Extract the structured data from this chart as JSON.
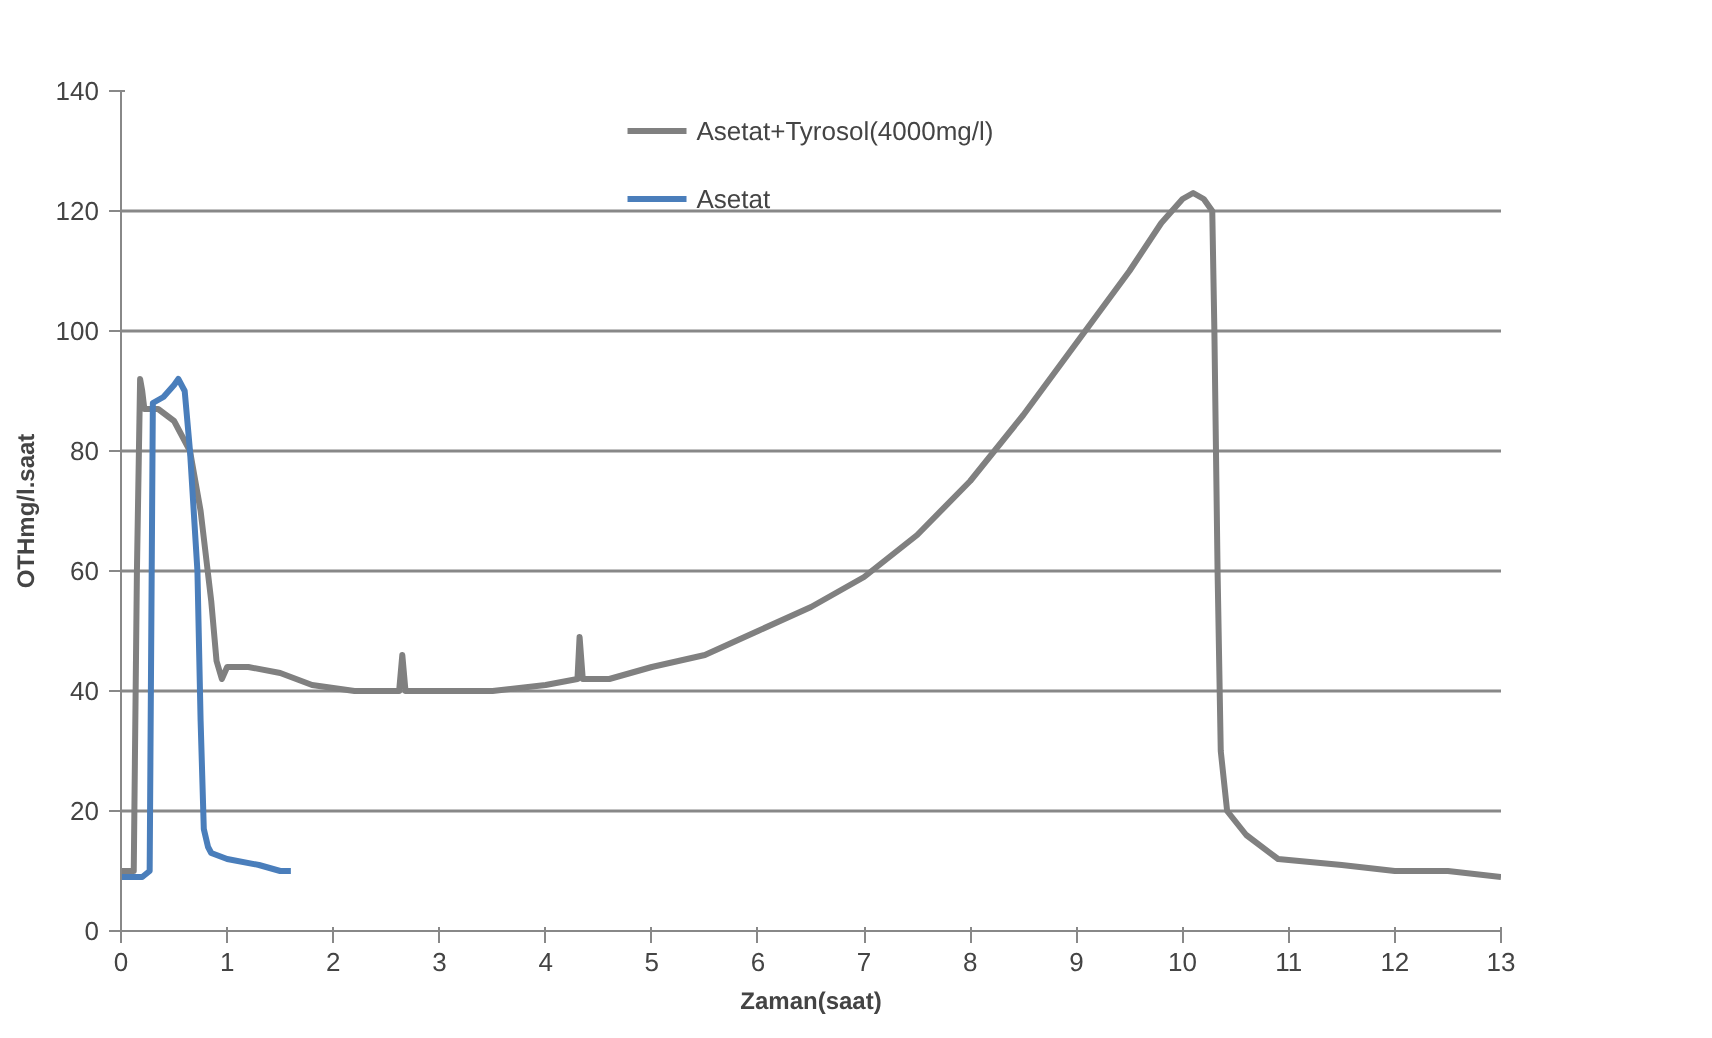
{
  "chart_data": {
    "type": "line",
    "xlabel": "Zaman(saat)",
    "ylabel": "OTHmg/l.saat",
    "xlim": [
      0,
      13
    ],
    "ylim": [
      0,
      140
    ],
    "xticks": [
      0,
      1,
      2,
      3,
      4,
      5,
      6,
      7,
      8,
      9,
      10,
      11,
      12,
      13
    ],
    "yticks": [
      0,
      20,
      40,
      60,
      80,
      100,
      120,
      140
    ],
    "grid": "y",
    "legend": "top",
    "line_style": "solid",
    "marker": "none",
    "series": [
      {
        "name": "Asetat+Tyrosol(4000mg/l)",
        "color": "#808080",
        "x": [
          0,
          0.12,
          0.15,
          0.18,
          0.2,
          0.22,
          0.35,
          0.5,
          0.65,
          0.75,
          0.85,
          0.9,
          0.95,
          1.0,
          1.2,
          1.5,
          1.8,
          2.2,
          2.5,
          2.62,
          2.65,
          2.68,
          3,
          3.5,
          4,
          4.3,
          4.32,
          4.35,
          4.6,
          5,
          5.5,
          6,
          6.5,
          7,
          7.5,
          8,
          8.5,
          9,
          9.5,
          9.8,
          10,
          10.1,
          10.2,
          10.28,
          10.3,
          10.33,
          10.36,
          10.42,
          10.6,
          10.9,
          11.5,
          12,
          12.5,
          13
        ],
        "values": [
          10,
          10,
          60,
          92,
          90,
          87,
          87,
          85,
          80,
          70,
          55,
          45,
          42,
          44,
          44,
          43,
          41,
          40,
          40,
          40,
          46,
          40,
          40,
          40,
          41,
          42,
          49,
          42,
          42,
          44,
          46,
          50,
          54,
          59,
          66,
          75,
          86,
          98,
          110,
          118,
          122,
          123,
          122,
          120,
          100,
          60,
          30,
          20,
          16,
          12,
          11,
          10,
          10,
          9
        ]
      },
      {
        "name": "Asetat",
        "color": "#4a7ebb",
        "x": [
          0,
          0.2,
          0.27,
          0.3,
          0.4,
          0.5,
          0.54,
          0.6,
          0.65,
          0.72,
          0.75,
          0.78,
          0.82,
          0.85,
          1.0,
          1.3,
          1.5,
          1.6
        ],
        "values": [
          9,
          9,
          10,
          88,
          89,
          91,
          92,
          90,
          80,
          60,
          35,
          17,
          14,
          13,
          12,
          11,
          10,
          10
        ]
      }
    ]
  }
}
